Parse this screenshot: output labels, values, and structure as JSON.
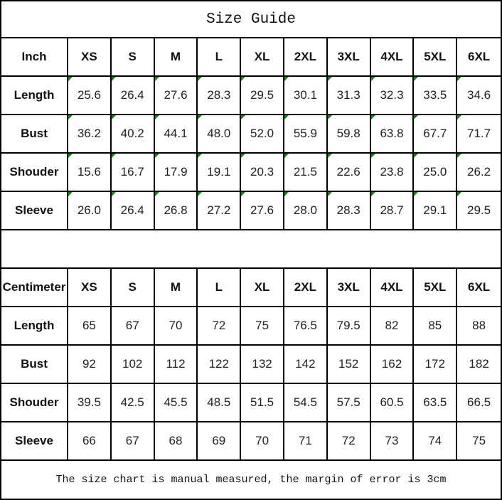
{
  "title": "Size Guide",
  "footer_note": "The size chart is manual measured, the margin of error is 3cm",
  "colors": {
    "border": "#000000",
    "background": "#ffffff",
    "text": "#1c1c1c",
    "note_marker_green": "#1e7d1e"
  },
  "sizes": [
    "XS",
    "S",
    "M",
    "L",
    "XL",
    "2XL",
    "3XL",
    "4XL",
    "5XL",
    "6XL"
  ],
  "inch_table": {
    "unit_label": "Inch",
    "rows": [
      {
        "label": "Length",
        "values": [
          "25.6",
          "26.4",
          "27.6",
          "28.3",
          "29.5",
          "30.1",
          "31.3",
          "32.3",
          "33.5",
          "34.6"
        ]
      },
      {
        "label": "Bust",
        "values": [
          "36.2",
          "40.2",
          "44.1",
          "48.0",
          "52.0",
          "55.9",
          "59.8",
          "63.8",
          "67.7",
          "71.7"
        ]
      },
      {
        "label": "Shouder",
        "values": [
          "15.6",
          "16.7",
          "17.9",
          "19.1",
          "20.3",
          "21.5",
          "22.6",
          "23.8",
          "25.0",
          "26.2"
        ]
      },
      {
        "label": "Sleeve",
        "values": [
          "26.0",
          "26.4",
          "26.8",
          "27.2",
          "27.6",
          "28.0",
          "28.3",
          "28.7",
          "29.1",
          "29.5"
        ]
      }
    ]
  },
  "cm_table": {
    "unit_label": "Centimeter",
    "rows": [
      {
        "label": "Length",
        "values": [
          "65",
          "67",
          "70",
          "72",
          "75",
          "76.5",
          "79.5",
          "82",
          "85",
          "88"
        ]
      },
      {
        "label": "Bust",
        "values": [
          "92",
          "102",
          "112",
          "122",
          "132",
          "142",
          "152",
          "162",
          "172",
          "182"
        ]
      },
      {
        "label": "Shouder",
        "values": [
          "39.5",
          "42.5",
          "45.5",
          "48.5",
          "51.5",
          "54.5",
          "57.5",
          "60.5",
          "63.5",
          "66.5"
        ]
      },
      {
        "label": "Sleeve",
        "values": [
          "66",
          "67",
          "68",
          "69",
          "70",
          "71",
          "72",
          "73",
          "74",
          "75"
        ]
      }
    ]
  }
}
